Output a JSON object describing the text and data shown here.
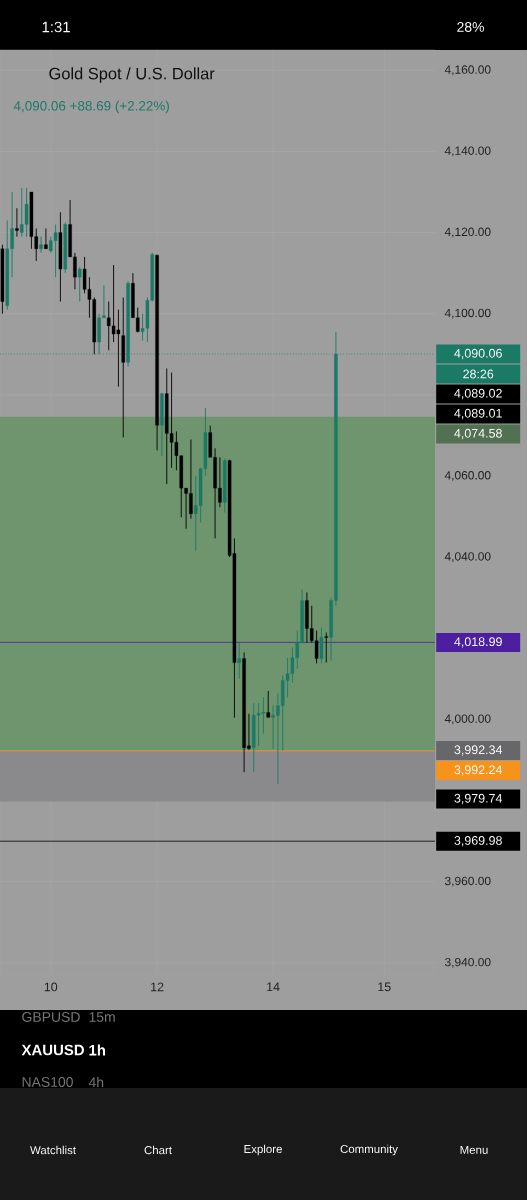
{
  "chart_data": {
    "type": "candlestick",
    "title": "Gold Spot / U.S. Dollar",
    "subtitle": "4,090.06  +88.69 (+2.22%)",
    "categories": [
      null,
      null,
      null,
      null,
      null,
      null,
      null,
      null,
      null,
      null,
      "10",
      null,
      null,
      null,
      null,
      null,
      null,
      null,
      null,
      null,
      null,
      null,
      null,
      null,
      null,
      null,
      null,
      null,
      null,
      null,
      null,
      null,
      "12",
      null,
      null,
      null,
      null,
      null,
      null,
      null,
      null,
      null,
      null,
      null,
      null,
      null,
      null,
      null,
      null,
      null,
      null,
      null,
      null,
      null,
      null,
      null,
      "14",
      null,
      null,
      null,
      null,
      null,
      null,
      null,
      null,
      null,
      null,
      null,
      null,
      null,
      null,
      null,
      null,
      null,
      null,
      null,
      null,
      null,
      null,
      "15",
      null,
      null,
      null,
      null,
      null,
      null,
      null,
      null,
      null,
      null
    ],
    "ohlc": [
      [
        4116,
        4117,
        4100,
        4103
      ],
      [
        4102,
        4123,
        4101,
        4116
      ],
      [
        4116,
        4130,
        4109,
        4121
      ],
      [
        4121,
        4126,
        4119,
        4120.5
      ],
      [
        4120,
        4131,
        4119,
        4122
      ],
      [
        4122,
        4131,
        4119,
        4127
      ],
      [
        4130,
        4130,
        4116,
        4119
      ],
      [
        4119,
        4121,
        4113,
        4116
      ],
      [
        4116,
        4119,
        4115,
        4117
      ],
      [
        4117,
        4121,
        4116,
        4116
      ],
      [
        4115.5,
        4119,
        4115,
        4118
      ],
      [
        4118,
        4122,
        4109,
        4120
      ],
      [
        4120,
        4125,
        4103,
        4111
      ],
      [
        4111,
        4122.5,
        4110,
        4122
      ],
      [
        4122,
        4128,
        4114,
        4114
      ],
      [
        4114,
        4115,
        4106,
        4109
      ],
      [
        4109,
        4111.5,
        4103,
        4111
      ],
      [
        4111,
        4114,
        4105,
        4106
      ],
      [
        4106,
        4109,
        4099,
        4103.5
      ],
      [
        4103.5,
        4104,
        4090,
        4093
      ],
      [
        4093,
        4100,
        4090,
        4099
      ],
      [
        4099,
        4107,
        4099,
        4099.5
      ],
      [
        4099,
        4103,
        4091,
        4097
      ],
      [
        4097,
        4112,
        4093,
        4095
      ],
      [
        4096,
        4101,
        4082,
        4095
      ],
      [
        4094.6,
        4104,
        4069.5,
        4088
      ],
      [
        4088,
        4108,
        4087,
        4107.5
      ],
      [
        4107.5,
        4110,
        4099,
        4099
      ],
      [
        4099,
        4101.5,
        4095.4,
        4095.6
      ],
      [
        4095.6,
        4100,
        4093.4,
        4096.4
      ],
      [
        4096.4,
        4104,
        4093,
        4103.3
      ],
      [
        4103.3,
        4115,
        4103,
        4114.6
      ],
      [
        4114.4,
        4114.6,
        4066.3,
        4072.5
      ],
      [
        4072.5,
        4080.5,
        4065,
        4080.3
      ],
      [
        4080.3,
        4086.5,
        4058,
        4070.5
      ],
      [
        4070.5,
        4085.5,
        4062,
        4068.3
      ],
      [
        4068.3,
        4071,
        4061.4,
        4065
      ],
      [
        4065,
        4065,
        4049.8,
        4057
      ],
      [
        4057,
        4057,
        4047,
        4055.7
      ],
      [
        4055.7,
        4069,
        4049.5,
        4050.7
      ],
      [
        4050.7,
        4060,
        4041.6,
        4052.7
      ],
      [
        4052.7,
        4062,
        4048.5,
        4061.8
      ],
      [
        4061.8,
        4076.7,
        4060,
        4070.7
      ],
      [
        4070.7,
        4072.4,
        4064.6,
        4064.6
      ],
      [
        4064.6,
        4066.8,
        4044.6,
        4057
      ],
      [
        4057,
        4064.6,
        4052.3,
        4053.5
      ],
      [
        4053.5,
        4064.3,
        4051,
        4063.8
      ],
      [
        4063.8,
        4064,
        4040,
        4040.4
      ],
      [
        4040.9,
        4044.6,
        4000.4,
        4014
      ],
      [
        4014,
        4019,
        4010,
        4015
      ],
      [
        4015,
        4016.5,
        3987,
        3993
      ],
      [
        3993.5,
        4001.4,
        3992.5,
        3992.8
      ],
      [
        3993,
        4004,
        3987,
        4001
      ],
      [
        4001,
        4004,
        3993.5,
        4001.5
      ],
      [
        4001.5,
        4005.5,
        3996.5,
        4001.8
      ],
      [
        4001.7,
        4007,
        4000.5,
        4000.5
      ],
      [
        4000.5,
        4003.4,
        3992.8,
        4001
      ],
      [
        4001,
        4006.4,
        3984,
        4003.4
      ],
      [
        4003.4,
        4010.8,
        3992.3,
        4009.6
      ],
      [
        4009.6,
        4015.2,
        4005.4,
        4011.3
      ],
      [
        4011.3,
        4017.7,
        4009.1,
        4015.2
      ],
      [
        4015.2,
        4021.9,
        4012.5,
        4018.9
      ],
      [
        4018.9,
        4032,
        4018.7,
        4029.3
      ],
      [
        4029.3,
        4031.3,
        4018.9,
        4022.4
      ],
      [
        4022.4,
        4028,
        4018.9,
        4019.4
      ],
      [
        4019.4,
        4021.9,
        4013.8,
        4015
      ],
      [
        4015,
        4022.6,
        4013.8,
        4020.2
      ],
      [
        4020.4,
        4021.4,
        4014,
        4020.2
      ],
      [
        4020.2,
        4030,
        4014.5,
        4029.3
      ],
      [
        4029.3,
        4095.5,
        4028,
        4090.06
      ],
      null,
      null,
      null,
      null,
      null,
      null,
      null,
      null,
      null,
      null,
      null,
      null,
      null,
      null,
      null,
      null,
      null,
      null,
      null,
      null
    ],
    "colors": [
      "#000000",
      "#1b7a66",
      "#1b7a66",
      "#000000",
      "#1b7a66",
      "#1b7a66",
      "#000000",
      "#000000",
      "#1b7a66",
      "#000000",
      "#1b7a66",
      "#1b7a66",
      "#000000",
      "#1b7a66",
      "#000000",
      "#000000",
      "#1b7a66",
      "#000000",
      "#000000",
      "#000000",
      "#1b7a66",
      "#1b7a66",
      "#000000",
      "#000000",
      "#000000",
      "#000000",
      "#1b7a66",
      "#000000",
      "#000000",
      "#1b7a66",
      "#1b7a66",
      "#1b7a66",
      "#000000",
      "#1b7a66",
      "#000000",
      "#000000",
      "#000000",
      "#000000",
      "#000000",
      "#000000",
      "#1b7a66",
      "#1b7a66",
      "#1b7a66",
      "#000000",
      "#000000",
      "#000000",
      "#1b7a66",
      "#000000",
      "#000000",
      "#1b7a66",
      "#000000",
      "#000000",
      "#1b7a66",
      "#1b7a66",
      "#1b7a66",
      "#000000",
      "#1b7a66",
      "#1b7a66",
      "#1b7a66",
      "#1b7a66",
      "#1b7a66",
      "#1b7a66",
      "#1b7a66",
      "#000000",
      "#000000",
      "#000000",
      "#1b7a66",
      "#000000",
      "#1b7a66",
      "#1b7a66",
      null,
      null,
      null,
      null,
      null,
      null,
      null,
      null,
      null,
      null,
      null,
      null,
      null,
      null,
      null,
      null,
      null,
      null,
      null,
      null
    ],
    "ylim": [
      3937,
      4165
    ],
    "yticks": [
      {
        "value": 3940,
        "label": "3,940.00"
      },
      {
        "value": 3960,
        "label": "3,960.00"
      },
      {
        "value": 3980,
        "label": null
      },
      {
        "value": 4000,
        "label": "4,000.00"
      },
      {
        "value": 4020,
        "label": null
      },
      {
        "value": 4040,
        "label": "4,040.00"
      },
      {
        "value": 4060,
        "label": "4,060.00"
      },
      {
        "value": 4080,
        "label": null
      },
      {
        "value": 4100,
        "label": "4,100.00"
      },
      {
        "value": 4120,
        "label": "4,120.00"
      },
      {
        "value": 4140,
        "label": "4,140.00"
      },
      {
        "value": 4160,
        "label": "4,160.00"
      }
    ],
    "grid": true,
    "ref_lines": [
      {
        "axis": "y",
        "value": 4090.06,
        "label": "4,090.06",
        "color": "#1b7a66",
        "line_style": "dotted"
      },
      {
        "axis": "y",
        "value": 4018.99,
        "label": "4,018.99",
        "color": "#4b1fa0",
        "line_style": "solid"
      },
      {
        "axis": "y",
        "value": 3992.24,
        "label": "3,992.24",
        "color": "#f7931a",
        "line_style": "solid"
      },
      {
        "axis": "y",
        "value": 3969.98,
        "label": "3,969.98",
        "color": "#000000",
        "line_style": "solid"
      }
    ],
    "bands": [
      {
        "axis": "y",
        "from": 3992.34,
        "to": 4074.58,
        "label": "4,074.58",
        "color": "#6e956e"
      },
      {
        "axis": "y",
        "from": 3979.74,
        "to": 3992.34,
        "label": "3,992.34",
        "color": "#8a8a8c"
      }
    ],
    "annotations": [
      "1:31",
      "28%",
      "GBPUSD",
      "15m",
      "XAUUSD",
      "1h",
      "NAS100",
      "4h",
      "Watchlist",
      "Chart",
      "Explore",
      "Community",
      "Menu",
      "28:26",
      "4,089.02",
      "4,089.01",
      "3,979.74"
    ]
  }
}
